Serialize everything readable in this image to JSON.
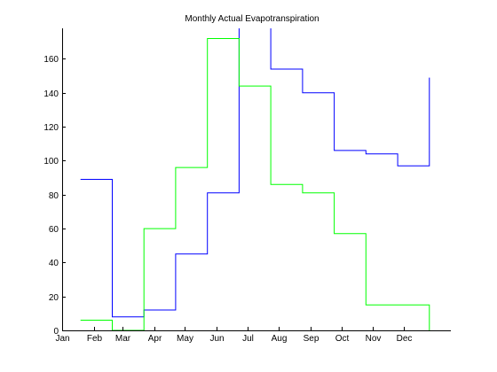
{
  "chart_data": {
    "type": "line",
    "step": true,
    "title": "Monthly Actual Evapotranspiration",
    "xlabel": "",
    "ylabel": "",
    "x_ticks": [
      {
        "value": 1,
        "label": "Jan"
      },
      {
        "value": 32,
        "label": "Feb"
      },
      {
        "value": 60,
        "label": "Mar"
      },
      {
        "value": 91,
        "label": "Apr"
      },
      {
        "value": 121,
        "label": "May"
      },
      {
        "value": 152,
        "label": "Jun"
      },
      {
        "value": 182,
        "label": "Jul"
      },
      {
        "value": 213,
        "label": "Aug"
      },
      {
        "value": 244,
        "label": "Sep"
      },
      {
        "value": 274,
        "label": "Oct"
      },
      {
        "value": 305,
        "label": "Nov"
      },
      {
        "value": 335,
        "label": "Dec"
      }
    ],
    "xlim": [
      1,
      381
    ],
    "ylim": [
      0,
      178
    ],
    "y_ticks": [
      0,
      20,
      40,
      60,
      80,
      100,
      120,
      140,
      160
    ],
    "grid": false,
    "legend": "none",
    "series": [
      {
        "color": "#0000ff",
        "x": [
          19,
          50,
          50,
          81,
          81,
          112,
          112,
          143,
          143,
          174,
          174,
          205,
          205,
          236,
          236,
          267,
          267,
          298,
          298,
          329,
          329,
          360,
          360
        ],
        "y": [
          89,
          89,
          8,
          8,
          12,
          12,
          45,
          45,
          81,
          81,
          198,
          198,
          154,
          154,
          140,
          140,
          106,
          106,
          104,
          104,
          97,
          97,
          149
        ]
      },
      {
        "color": "#00ff00",
        "x": [
          19,
          50,
          50,
          81,
          81,
          112,
          112,
          143,
          143,
          174,
          174,
          205,
          205,
          236,
          236,
          267,
          267,
          298,
          298,
          329,
          329,
          360,
          360
        ],
        "y": [
          6,
          6,
          0,
          0,
          60,
          60,
          96,
          96,
          172,
          172,
          144,
          144,
          86,
          86,
          81,
          81,
          57,
          57,
          15,
          15,
          15,
          15,
          0
        ]
      }
    ]
  }
}
